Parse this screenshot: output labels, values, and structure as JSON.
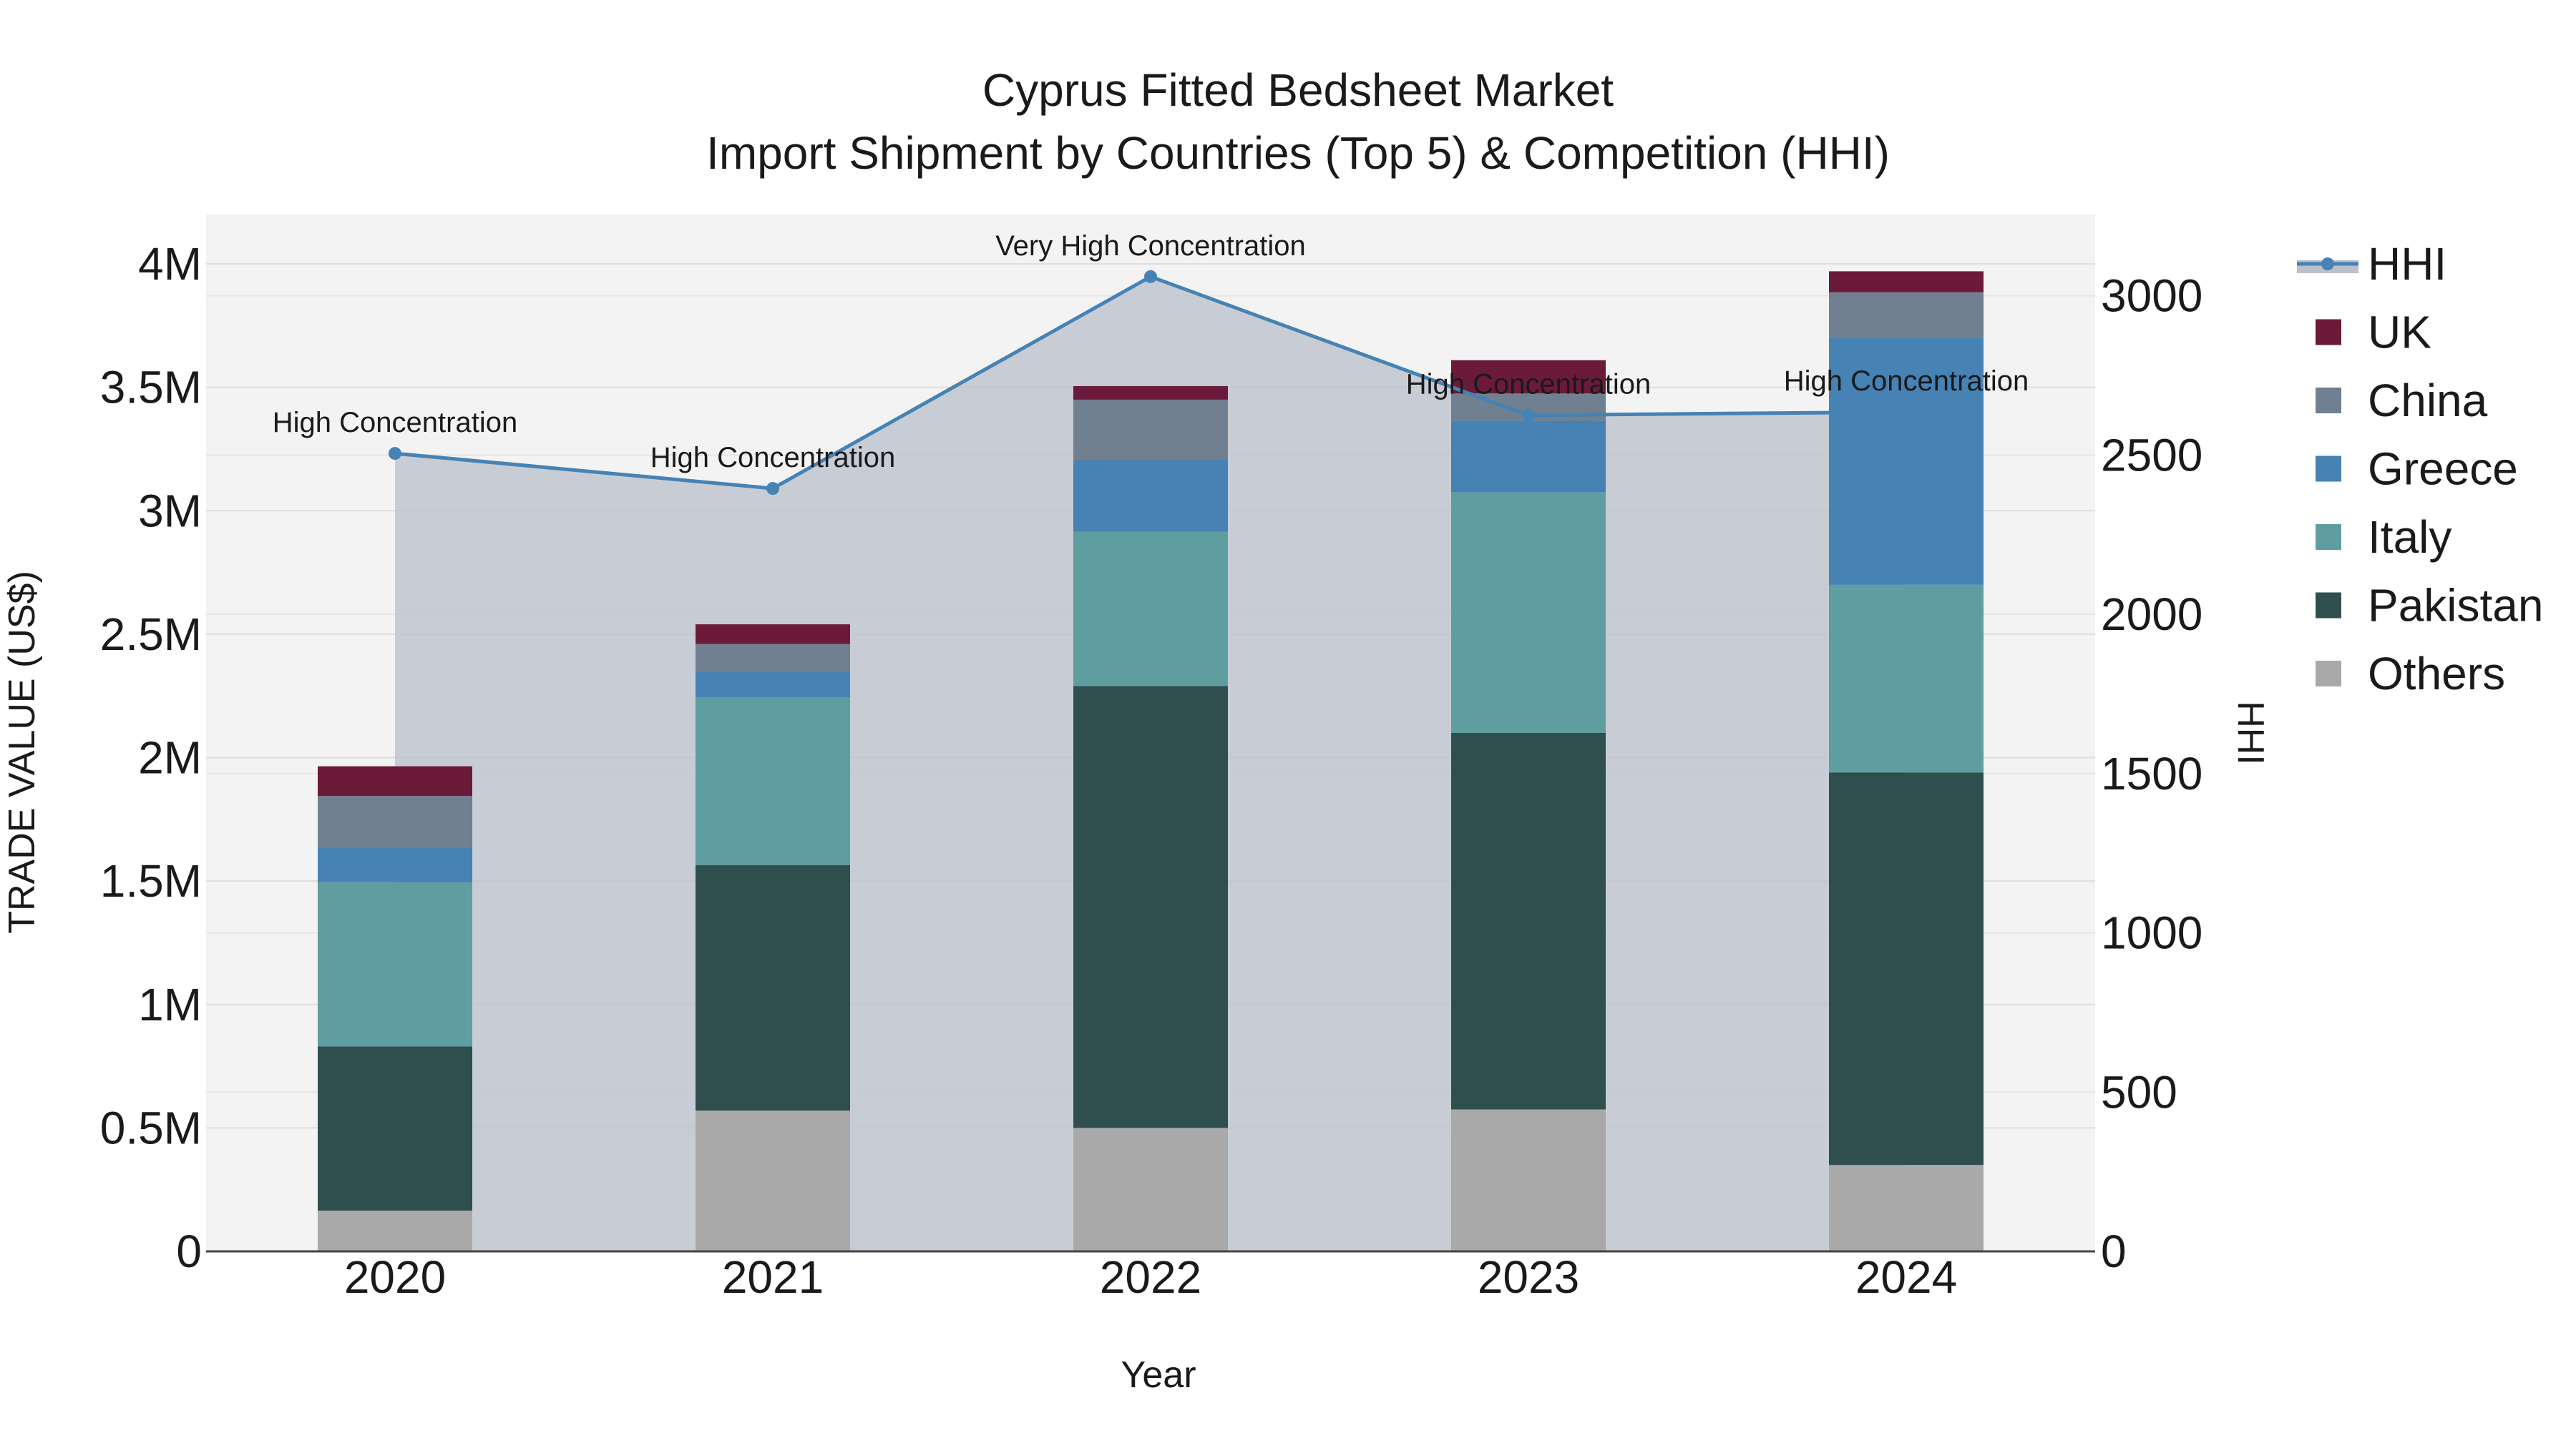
{
  "chart_data": {
    "type": "bar",
    "title_lines": [
      "Cyprus Fitted Bedsheet Market",
      "Import Shipment by Countries (Top 5) & Competition (HHI)"
    ],
    "xlabel": "Year",
    "ylabel": "TRADE VALUE (US$)",
    "y2label": "HHI",
    "categories": [
      "2020",
      "2021",
      "2022",
      "2023",
      "2024"
    ],
    "ylim": [
      0,
      4200000
    ],
    "y2lim": [
      0,
      3255
    ],
    "y_ticks": [
      {
        "value": 0,
        "label": "0"
      },
      {
        "value": 500000,
        "label": "0.5M"
      },
      {
        "value": 1000000,
        "label": "1M"
      },
      {
        "value": 1500000,
        "label": "1.5M"
      },
      {
        "value": 2000000,
        "label": "2M"
      },
      {
        "value": 2500000,
        "label": "2.5M"
      },
      {
        "value": 3000000,
        "label": "3M"
      },
      {
        "value": 3500000,
        "label": "3.5M"
      },
      {
        "value": 4000000,
        "label": "4M"
      }
    ],
    "y2_ticks": [
      {
        "value": 0,
        "label": "0"
      },
      {
        "value": 500,
        "label": "500"
      },
      {
        "value": 1000,
        "label": "1000"
      },
      {
        "value": 1500,
        "label": "1500"
      },
      {
        "value": 2000,
        "label": "2000"
      },
      {
        "value": 2500,
        "label": "2500"
      },
      {
        "value": 3000,
        "label": "3000"
      }
    ],
    "series": [
      {
        "name": "Others",
        "color": "#a9a9a9",
        "values": [
          165000,
          570000,
          500000,
          575000,
          350000
        ]
      },
      {
        "name": "Pakistan",
        "color": "#2f4f4f",
        "values": [
          665000,
          995000,
          1790000,
          1525000,
          1590000
        ]
      },
      {
        "name": "Italy",
        "color": "#5f9ea0",
        "values": [
          665000,
          680000,
          625000,
          975000,
          760000
        ]
      },
      {
        "name": "Greece",
        "color": "#4682b4",
        "values": [
          140000,
          105000,
          290000,
          290000,
          1000000
        ]
      },
      {
        "name": "China",
        "color": "#708090",
        "values": [
          210000,
          110000,
          245000,
          110000,
          185000
        ]
      },
      {
        "name": "UK",
        "color": "#6b1a3a",
        "values": [
          120000,
          80000,
          55000,
          135000,
          85000
        ]
      }
    ],
    "hhi": {
      "name": "HHI",
      "color": "#4682b4",
      "values": [
        2505,
        2395,
        3060,
        2625,
        2635
      ],
      "annotations": [
        "High Concentration",
        "High Concentration",
        "Very High Concentration",
        "High Concentration",
        "High Concentration"
      ]
    },
    "legend_order": [
      "HHI",
      "UK",
      "China",
      "Greece",
      "Italy",
      "Pakistan",
      "Others"
    ],
    "legend_position": "right",
    "grid": true
  }
}
